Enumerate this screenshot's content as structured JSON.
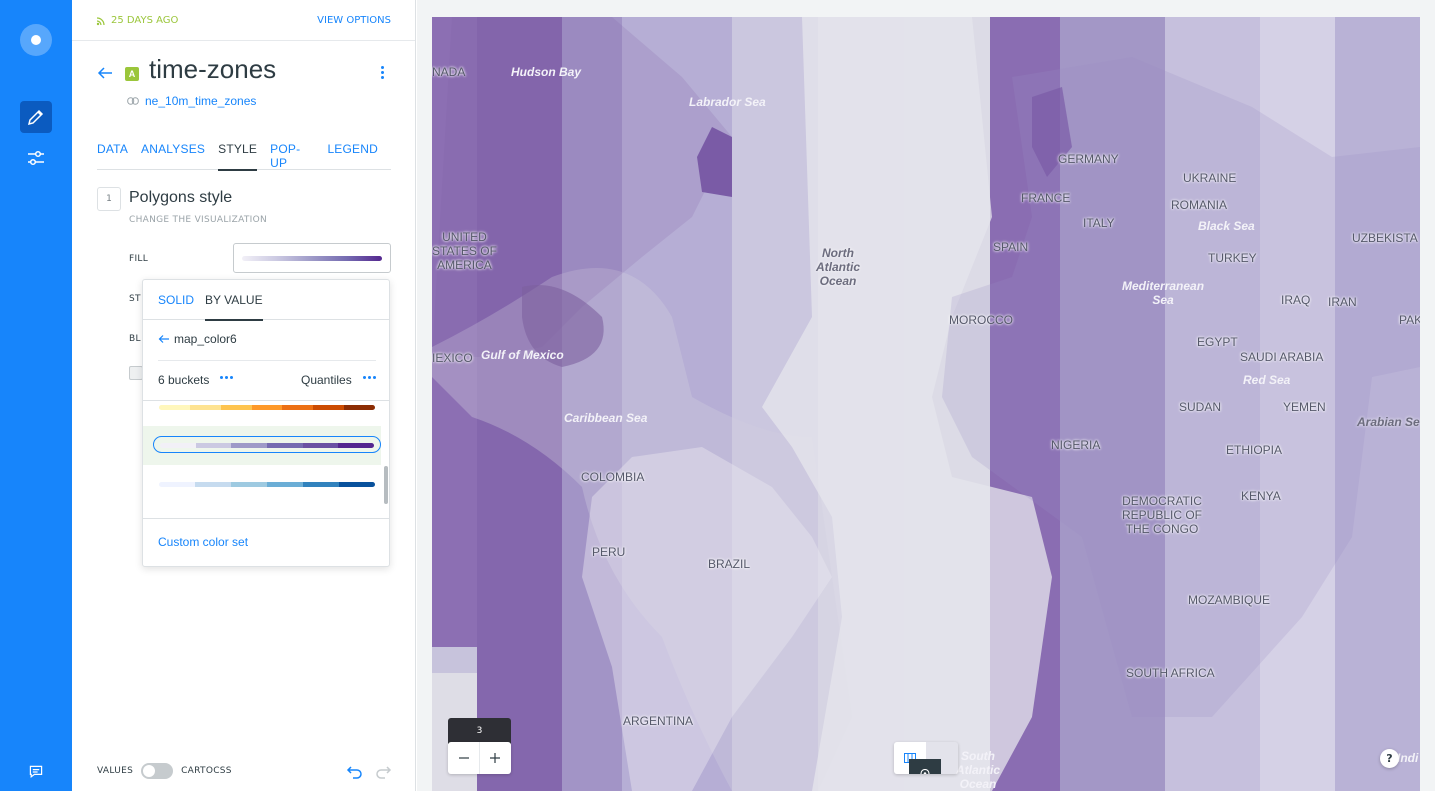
{
  "header": {
    "updated": "25 DAYS AGO",
    "view_options": "VIEW OPTIONS"
  },
  "layer": {
    "badge": "A",
    "title": "time-zones",
    "source": "ne_10m_time_zones"
  },
  "tabs": [
    "DATA",
    "ANALYSES",
    "STYLE",
    "POP-UP",
    "LEGEND"
  ],
  "active_tab": "STYLE",
  "style_section": {
    "step": "1",
    "title": "Polygons style",
    "subtitle": "CHANGE THE VISUALIZATION",
    "fill_label": "FILL",
    "stroke_label_partial": "ST",
    "blend_label_partial": "BL"
  },
  "fill_dropdown": {
    "tab_solid": "SOLID",
    "tab_by_value": "BY VALUE",
    "active_tab": "BY VALUE",
    "column": "map_color6",
    "buckets": "6 buckets",
    "classification": "Quantiles",
    "ramps": [
      {
        "colors": [
          "#fff7bc",
          "#fee391",
          "#fec44f",
          "#fe9929",
          "#ec7014",
          "#cc4c02",
          "#8c2d04"
        ],
        "selected": false
      },
      {
        "colors": [
          "#f2f0f7",
          "#cbc9e2",
          "#9e9ac8",
          "#756bb1",
          "#6a51a3",
          "#54278f"
        ],
        "selected": true
      },
      {
        "colors": [
          "#eff3ff",
          "#c6dbef",
          "#9ecae1",
          "#6baed6",
          "#3182bd",
          "#08519c"
        ],
        "selected": false
      }
    ],
    "custom_color_set": "Custom color set"
  },
  "bottom": {
    "values": "VALUES",
    "cartocss": "CARTOCSS"
  },
  "map": {
    "zoom_level": "3",
    "labels": {
      "canada": "NADA",
      "hudson_bay": "Hudson Bay",
      "labrador_sea": "Labrador Sea",
      "usa": "UNITED\nSTATES OF\nAMERICA",
      "mexico": "IEXICO",
      "gulf_mexico": "Gulf of Mexico",
      "caribbean": "Caribbean Sea",
      "colombia": "COLOMBIA",
      "peru": "PERU",
      "brazil": "BRAZIL",
      "argentina": "ARGENTINA",
      "north_atlantic": "North\nAtlantic\nOcean",
      "south_atlantic": "South\nAtlantic\nOcean",
      "germany": "GERMANY",
      "france": "FRANCE",
      "italy": "ITALY",
      "spain": "SPAIN",
      "ukraine": "UKRAINE",
      "romania": "ROMANIA",
      "black_sea": "Black Sea",
      "turkey": "TURKEY",
      "uzbekistan": "UZBEKISTA",
      "mediterranean": "Mediterranean\nSea",
      "iraq": "IRAQ",
      "iran": "IRAN",
      "pak": "PAK",
      "morocco": "MOROCCO",
      "egypt": "EGYPT",
      "saudi": "SAUDI ARABIA",
      "red_sea": "Red Sea",
      "sudan": "SUDAN",
      "yemen": "YEMEN",
      "arabian_sea": "Arabian Se",
      "nigeria": "NIGERIA",
      "ethiopia": "ETHIOPIA",
      "drc": "DEMOCRATIC\nREPUBLIC OF\nTHE CONGO",
      "kenya": "KENYA",
      "mozambique": "MOZAMBIQUE",
      "south_africa": "SOUTH AFRICA",
      "india_partial": "Indi"
    },
    "help": "?"
  },
  "colors": {
    "brand_blue": "#1785fb",
    "updated_green": "#9bc63b",
    "zone_palette": [
      "#8c6fb3",
      "#a79cc9",
      "#c2bcdc",
      "#d6d3e6",
      "#b1a8cf",
      "#7f62a8"
    ]
  }
}
